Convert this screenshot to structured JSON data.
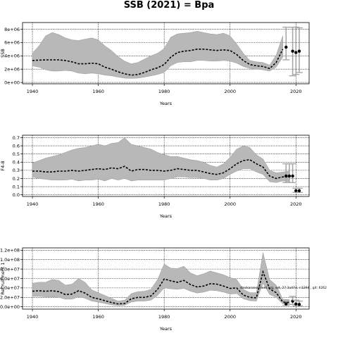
{
  "title": "SSB (2021) = Bpa",
  "chart_data": [
    {
      "type": "line",
      "panel": "ssb",
      "xlabel": "Years",
      "ylabel": "SSB",
      "xlim": [
        1937,
        2024
      ],
      "ylim": [
        -200000,
        9000000
      ],
      "xticks": [
        1940,
        1960,
        1980,
        2000,
        2020
      ],
      "yticks": [
        0,
        2000000,
        4000000,
        6000000,
        8000000
      ],
      "ytick_labels": [
        "0e+00",
        "2e+06",
        "4e+06",
        "6e+06",
        "8e+06"
      ],
      "grid": true,
      "series": [
        {
          "x": [
            1940,
            1942,
            1944,
            1946,
            1948,
            1950,
            1952,
            1954,
            1956,
            1958,
            1960,
            1962,
            1964,
            1966,
            1968,
            1970,
            1972,
            1974,
            1976,
            1978,
            1980,
            1982,
            1984,
            1986,
            1988,
            1990,
            1992,
            1994,
            1996,
            1998,
            2000,
            2002,
            2004,
            2006,
            2008,
            2010,
            2012,
            2014,
            2016
          ],
          "y": [
            3300000,
            3350000,
            3400000,
            3400000,
            3400000,
            3300000,
            3100000,
            2800000,
            2800000,
            2900000,
            2800000,
            2300000,
            2000000,
            1600000,
            1300000,
            1100000,
            1200000,
            1500000,
            1900000,
            2200000,
            2700000,
            3800000,
            4500000,
            4700000,
            4800000,
            5000000,
            5000000,
            4900000,
            4800000,
            4900000,
            4800000,
            4200000,
            3300000,
            2700000,
            2500000,
            2400000,
            2100000,
            3000000,
            5000000
          ],
          "lower": [
            2500000,
            2300000,
            1900000,
            1700000,
            1700000,
            1800000,
            1700000,
            1400000,
            1300000,
            1400000,
            1300000,
            1100000,
            1000000,
            800000,
            650000,
            600000,
            650000,
            800000,
            1000000,
            1200000,
            1500000,
            2500000,
            3000000,
            3100000,
            3100000,
            3300000,
            3300000,
            3200000,
            3200000,
            3300000,
            3200000,
            2900000,
            2400000,
            2100000,
            2000000,
            1900000,
            1700000,
            2300000,
            3800000
          ],
          "upper": [
            4400000,
            5500000,
            7000000,
            7500000,
            7200000,
            6700000,
            6400000,
            6300000,
            6500000,
            6700000,
            6400000,
            5500000,
            4800000,
            3900000,
            3200000,
            2800000,
            3000000,
            3500000,
            4000000,
            4400000,
            5100000,
            6800000,
            7300000,
            7400000,
            7500000,
            7700000,
            7500000,
            7300000,
            7200000,
            7400000,
            7000000,
            5800000,
            4400000,
            3300000,
            3100000,
            3000000,
            2600000,
            4100000,
            7000000
          ]
        }
      ],
      "points": {
        "x": [
          2017,
          2019,
          2020,
          2021
        ],
        "y": [
          5300000,
          4700000,
          4500000,
          4700000
        ],
        "lower": [
          3400000,
          1000000,
          1200000,
          1500000
        ],
        "upper": [
          8300000,
          8300000,
          8300000,
          8200000
        ]
      }
    },
    {
      "type": "line",
      "panel": "fbar",
      "xlabel": "Years",
      "ylabel": "F4-8",
      "xlim": [
        1937,
        2024
      ],
      "ylim": [
        -0.02,
        0.73
      ],
      "xticks": [
        1940,
        1960,
        1980,
        2000,
        2020
      ],
      "yticks": [
        0,
        0.1,
        0.2,
        0.3,
        0.4,
        0.5,
        0.6,
        0.7
      ],
      "ytick_labels": [
        "0.0",
        "0.1",
        "0.2",
        "0.3",
        "0.4",
        "0.5",
        "0.6",
        "0.7"
      ],
      "grid": true,
      "series": [
        {
          "x": [
            1940,
            1942,
            1944,
            1946,
            1948,
            1950,
            1952,
            1954,
            1956,
            1958,
            1960,
            1962,
            1964,
            1966,
            1968,
            1970,
            1972,
            1974,
            1976,
            1978,
            1980,
            1982,
            1984,
            1986,
            1988,
            1990,
            1992,
            1994,
            1996,
            1998,
            2000,
            2002,
            2004,
            2006,
            2008,
            2010,
            2012,
            2014,
            2016,
            2018
          ],
          "y": [
            0.29,
            0.29,
            0.28,
            0.28,
            0.29,
            0.29,
            0.3,
            0.29,
            0.3,
            0.31,
            0.32,
            0.31,
            0.33,
            0.32,
            0.35,
            0.29,
            0.31,
            0.31,
            0.3,
            0.3,
            0.29,
            0.3,
            0.32,
            0.31,
            0.3,
            0.3,
            0.28,
            0.26,
            0.25,
            0.27,
            0.32,
            0.38,
            0.42,
            0.43,
            0.38,
            0.34,
            0.23,
            0.2,
            0.22,
            0.22
          ],
          "lower": [
            0.22,
            0.2,
            0.19,
            0.18,
            0.18,
            0.18,
            0.19,
            0.17,
            0.18,
            0.18,
            0.19,
            0.17,
            0.2,
            0.18,
            0.2,
            0.17,
            0.18,
            0.18,
            0.18,
            0.18,
            0.18,
            0.2,
            0.22,
            0.22,
            0.21,
            0.21,
            0.2,
            0.18,
            0.18,
            0.2,
            0.25,
            0.29,
            0.32,
            0.32,
            0.28,
            0.25,
            0.16,
            0.15,
            0.17,
            0.16
          ],
          "upper": [
            0.39,
            0.42,
            0.45,
            0.47,
            0.49,
            0.52,
            0.55,
            0.57,
            0.58,
            0.6,
            0.62,
            0.6,
            0.63,
            0.64,
            0.7,
            0.62,
            0.6,
            0.58,
            0.56,
            0.52,
            0.49,
            0.47,
            0.47,
            0.45,
            0.43,
            0.42,
            0.4,
            0.36,
            0.34,
            0.38,
            0.46,
            0.56,
            0.6,
            0.58,
            0.49,
            0.44,
            0.3,
            0.27,
            0.28,
            0.29
          ]
        }
      ],
      "points": {
        "x": [
          2017,
          2018,
          2019,
          2020,
          2021
        ],
        "y": [
          0.23,
          0.23,
          0.23,
          0.05,
          0.05
        ],
        "lower": [
          0.15,
          0.15,
          0.15,
          0.03,
          0.03
        ],
        "upper": [
          0.38,
          0.38,
          0.38,
          0.08,
          0.08
        ]
      }
    },
    {
      "type": "line",
      "panel": "recruitment",
      "xlabel": "Years",
      "ylabel": "Recruitment 1",
      "xlim": [
        1937,
        2024
      ],
      "ylim": [
        -5000000,
        125000000
      ],
      "xticks": [
        1940,
        1960,
        1980,
        2000,
        2020
      ],
      "yticks": [
        0,
        20000000,
        40000000,
        60000000,
        80000000,
        100000000,
        120000000
      ],
      "ytick_labels": [
        "0.0e+00",
        "2.0e+07",
        "4.0e+07",
        "6.0e+07",
        "8.0e+07",
        "1.0e+08",
        "1.2e+08"
      ],
      "grid": true,
      "annotation": "stockassessment.org, wit, 27.3a47d, r:1294 , git: 6262",
      "series": [
        {
          "x": [
            1940,
            1942,
            1944,
            1946,
            1948,
            1950,
            1952,
            1954,
            1956,
            1958,
            1960,
            1962,
            1964,
            1966,
            1968,
            1970,
            1972,
            1974,
            1976,
            1978,
            1980,
            1982,
            1984,
            1986,
            1988,
            1990,
            1992,
            1994,
            1996,
            1998,
            2000,
            2002,
            2004,
            2006,
            2008,
            2010,
            2012,
            2014,
            2016,
            2018
          ],
          "y": [
            33000000,
            34000000,
            33000000,
            34000000,
            32000000,
            26000000,
            27000000,
            34000000,
            29000000,
            20000000,
            17000000,
            13000000,
            9000000,
            6000000,
            7000000,
            17000000,
            20000000,
            20000000,
            23000000,
            37000000,
            59000000,
            55000000,
            52000000,
            56000000,
            47000000,
            42000000,
            44000000,
            49000000,
            48000000,
            44000000,
            39000000,
            40000000,
            25000000,
            20000000,
            19000000,
            74000000,
            38000000,
            30000000,
            10000000,
            9000000
          ],
          "lower": [
            22000000,
            22000000,
            21000000,
            21000000,
            20000000,
            16000000,
            16000000,
            21000000,
            18000000,
            12000000,
            10000000,
            7000000,
            4000000,
            2500000,
            3000000,
            10000000,
            12000000,
            12000000,
            14000000,
            24000000,
            40000000,
            38000000,
            37000000,
            39000000,
            33000000,
            29000000,
            31000000,
            35000000,
            34000000,
            31000000,
            27000000,
            28000000,
            17000000,
            13000000,
            12000000,
            50000000,
            26000000,
            20000000,
            6000000,
            5000000
          ],
          "upper": [
            50000000,
            52000000,
            52000000,
            58000000,
            56000000,
            46000000,
            48000000,
            60000000,
            52000000,
            36000000,
            30000000,
            24000000,
            18000000,
            12000000,
            14000000,
            28000000,
            32000000,
            33000000,
            37000000,
            58000000,
            91000000,
            82000000,
            81000000,
            86000000,
            72000000,
            66000000,
            70000000,
            76000000,
            72000000,
            68000000,
            62000000,
            58000000,
            37000000,
            30000000,
            30000000,
            115000000,
            58000000,
            46000000,
            16000000,
            15000000
          ]
        }
      ],
      "points": {
        "x": [
          2017,
          2019,
          2020,
          2021
        ],
        "y": [
          6000000,
          12000000,
          6000000,
          5000000
        ],
        "lower": [
          3000000,
          5000000,
          2000000,
          2000000
        ],
        "upper": [
          12000000,
          22000000,
          14000000,
          12000000
        ]
      }
    }
  ]
}
